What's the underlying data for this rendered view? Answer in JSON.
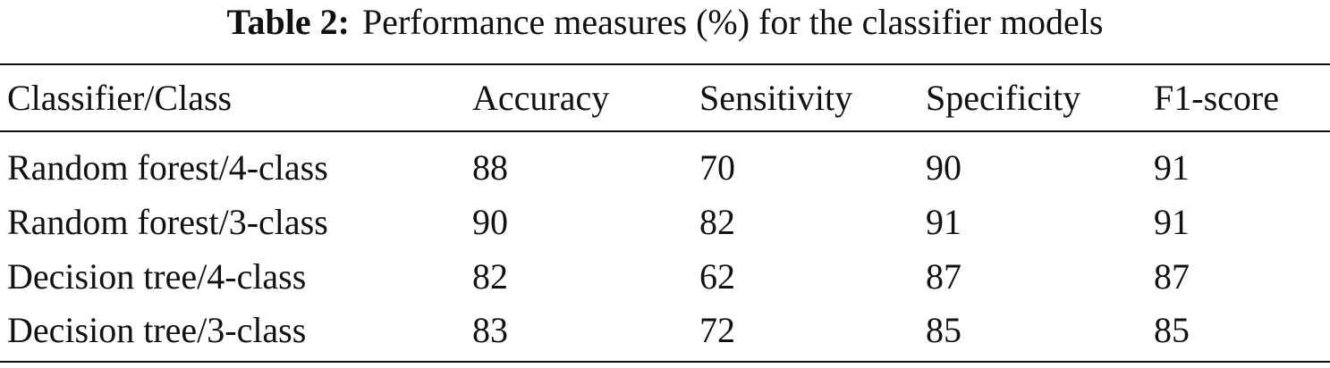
{
  "caption": {
    "label": "Table 2:",
    "text": "Performance measures (%) for the classifier models"
  },
  "table": {
    "header": [
      "Classifier/Class",
      "Accuracy",
      "Sensitivity",
      "Specificity",
      "F1-score"
    ],
    "rows": [
      [
        "Random forest/4-class",
        88,
        70,
        90,
        91
      ],
      [
        "Random forest/3-class",
        90,
        82,
        91,
        91
      ],
      [
        "Decision tree/4-class",
        82,
        62,
        87,
        87
      ],
      [
        "Decision tree/3-class",
        83,
        72,
        85,
        85
      ]
    ]
  }
}
